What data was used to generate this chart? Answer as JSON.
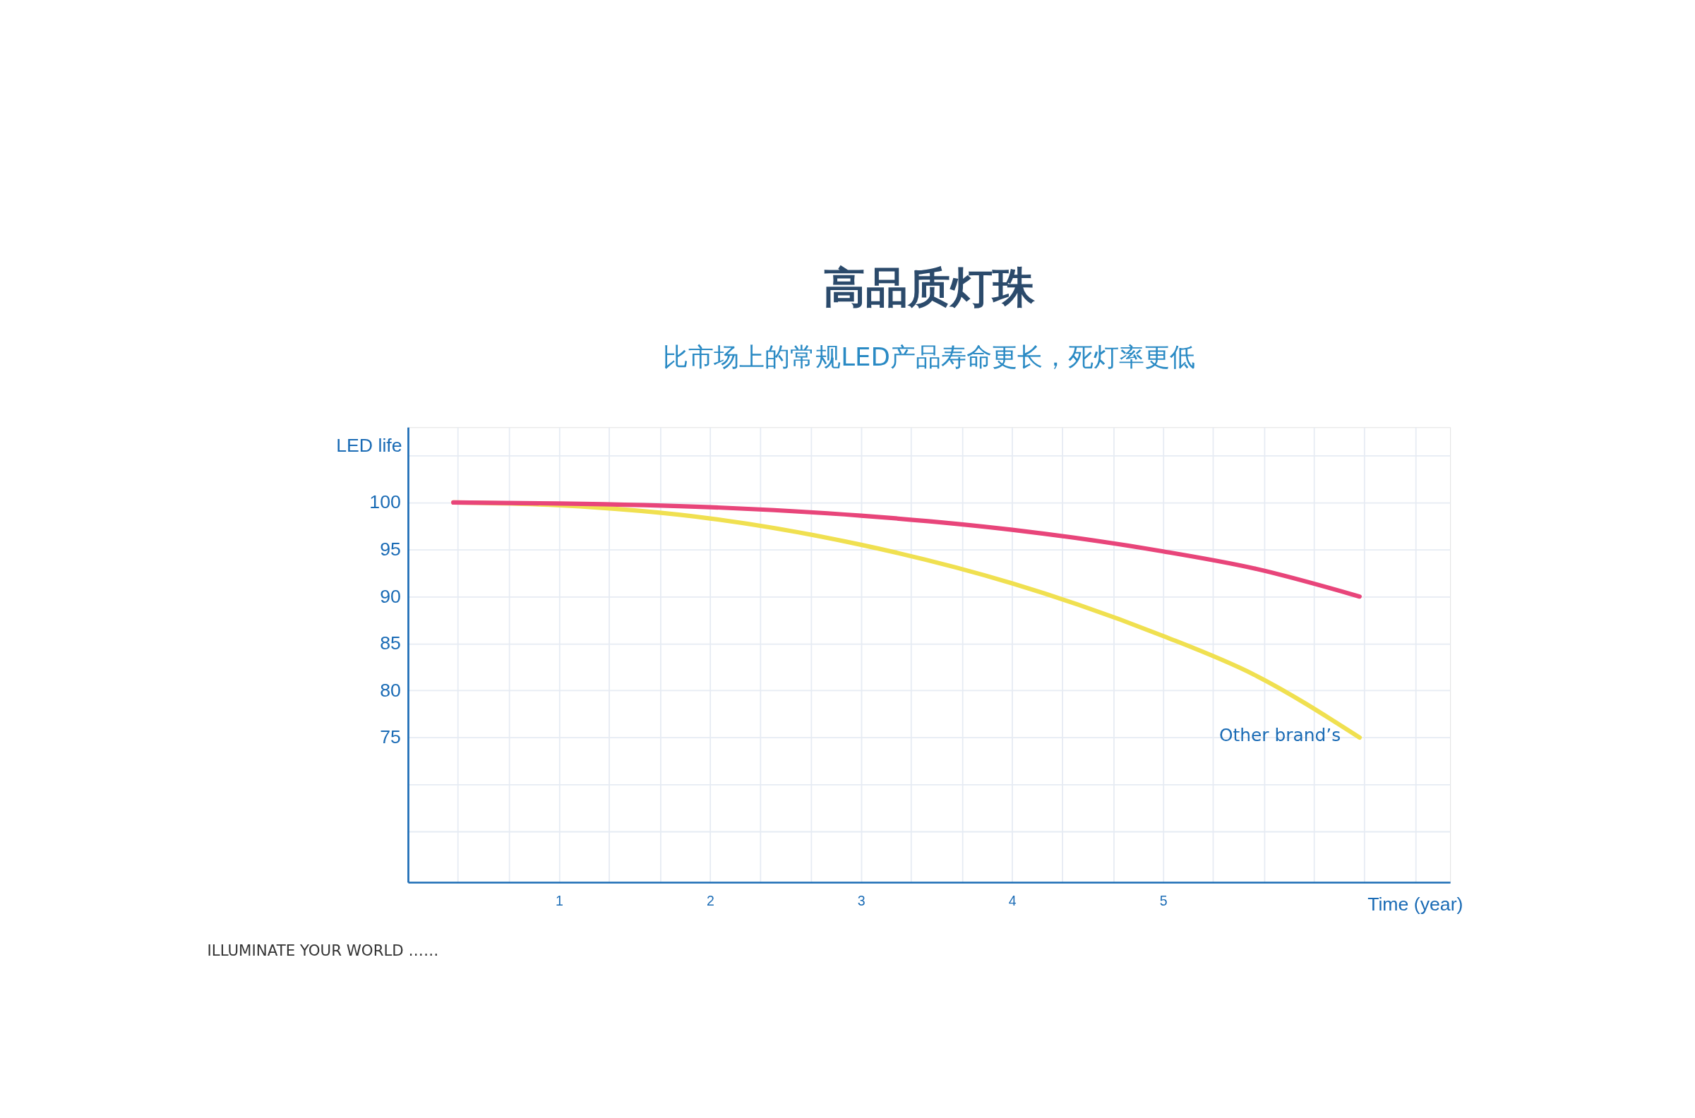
{
  "chart_data": {
    "type": "line",
    "title": "高品质灯珠",
    "subtitle": "比市场上的常规LED产品寿命更长，死灯率更低",
    "xlabel": "Time (year)",
    "ylabel": "LED life",
    "xlim": [
      0,
      6.9
    ],
    "ylim": [
      59.6,
      108
    ],
    "xticks": [
      {
        "value": 0.33,
        "label": null
      },
      {
        "value": 0.67,
        "label": null
      },
      1,
      {
        "value": 1.33,
        "label": null
      },
      {
        "value": 1.67,
        "label": null
      },
      2,
      {
        "value": 2.33,
        "label": null
      },
      {
        "value": 2.67,
        "label": null
      },
      3,
      {
        "value": 3.33,
        "label": null
      },
      {
        "value": 3.67,
        "label": null
      },
      4,
      {
        "value": 4.33,
        "label": null
      },
      {
        "value": 4.67,
        "label": null
      },
      5,
      {
        "value": 5.33,
        "label": null
      },
      {
        "value": 5.67,
        "label": null
      },
      {
        "value": 6,
        "label": null
      },
      {
        "value": 6.33,
        "label": null
      },
      {
        "value": 6.67,
        "label": null
      }
    ],
    "yticks": [
      {
        "value": 65,
        "label": null
      },
      {
        "value": 70,
        "label": null
      },
      75,
      80,
      85,
      90,
      95,
      100,
      {
        "value": 105,
        "label": null
      }
    ],
    "grid": true,
    "legend": false,
    "marker": "none",
    "line_style": "solid",
    "series": [
      {
        "color": "#e8457a",
        "x": [
          0.3,
          1,
          2,
          3,
          4,
          5,
          5.6,
          6.3
        ],
        "values": [
          100,
          99.9,
          99.5,
          98.6,
          97.1,
          94.8,
          93,
          90
        ]
      },
      {
        "name": "Other brand’s",
        "color": "#f0e050",
        "x": [
          0.3,
          1,
          2,
          3,
          4,
          5,
          5.6,
          6.3
        ],
        "values": [
          100,
          99.7,
          98.3,
          95.5,
          91.4,
          85.8,
          81.7,
          75
        ]
      }
    ],
    "annotations": [
      "ILLUMINATE YOUR WORLD ……"
    ]
  }
}
